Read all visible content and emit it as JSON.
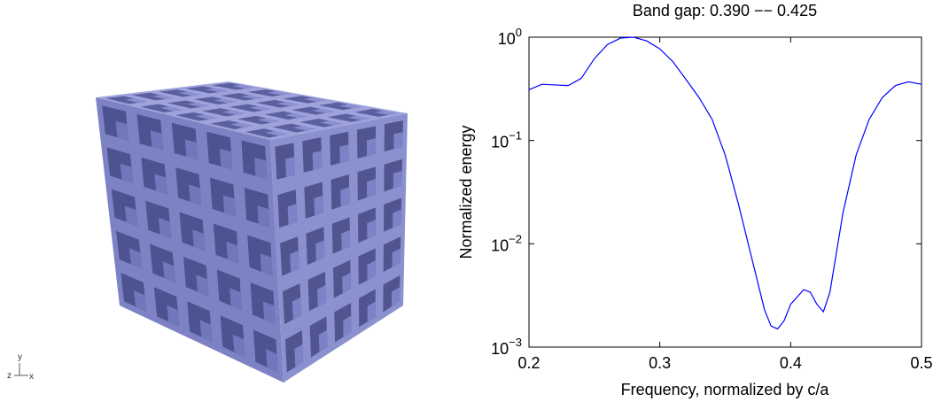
{
  "chart_data": {
    "type": "line",
    "title": "Band gap: 0.390 −− 0.425",
    "x_label": "Frequency, normalized by c/a",
    "y_label": "Normalized energy",
    "yscale": "log",
    "xlim": [
      0.2,
      0.5
    ],
    "xticks": [
      0.2,
      0.3,
      0.4,
      0.5
    ],
    "ylim": [
      0.001,
      1
    ],
    "yticks": [
      {
        "value": 0.001,
        "label": "10^−3"
      },
      {
        "value": 0.01,
        "label": "10^−2"
      },
      {
        "value": 0.1,
        "label": "10^−1"
      },
      {
        "value": 1,
        "label": "10^0"
      }
    ],
    "x": [
      0.2,
      0.21,
      0.22,
      0.23,
      0.24,
      0.25,
      0.26,
      0.27,
      0.28,
      0.29,
      0.3,
      0.31,
      0.32,
      0.33,
      0.34,
      0.35,
      0.36,
      0.37,
      0.38,
      0.385,
      0.39,
      0.395,
      0.4,
      0.41,
      0.415,
      0.42,
      0.425,
      0.43,
      0.44,
      0.45,
      0.46,
      0.47,
      0.48,
      0.49,
      0.5
    ],
    "series": [
      {
        "color": "#0000ff",
        "values": [
          0.31,
          0.35,
          0.345,
          0.34,
          0.4,
          0.62,
          0.85,
          0.98,
          1.0,
          0.92,
          0.77,
          0.58,
          0.39,
          0.26,
          0.16,
          0.072,
          0.0245,
          0.0075,
          0.0023,
          0.0016,
          0.0015,
          0.0018,
          0.0026,
          0.0036,
          0.0034,
          0.0026,
          0.0022,
          0.0034,
          0.02,
          0.072,
          0.16,
          0.26,
          0.34,
          0.37,
          0.35
        ]
      }
    ]
  },
  "axis_triad": {
    "y": "y",
    "z": "z",
    "x": "x"
  }
}
